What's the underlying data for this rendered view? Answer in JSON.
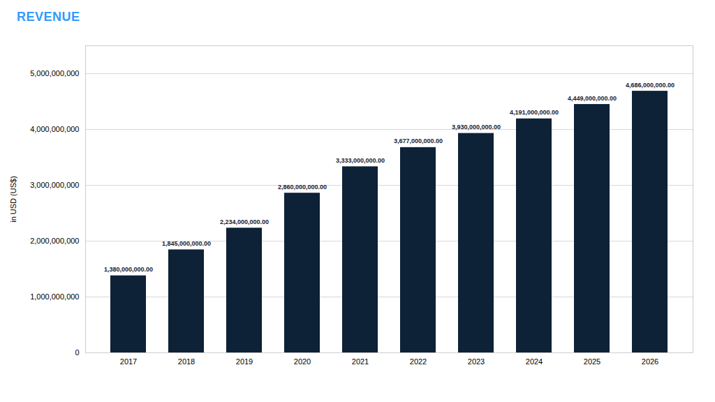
{
  "chart_data": {
    "type": "bar",
    "title": "REVENUE",
    "ylabel": "in USD (US$)",
    "categories": [
      "2017",
      "2018",
      "2019",
      "2020",
      "2021",
      "2022",
      "2023",
      "2024",
      "2025",
      "2026"
    ],
    "values": [
      1380000000,
      1845000000,
      2234000000,
      2860000000,
      3333000000,
      3677000000,
      3930000000,
      4191000000,
      4449000000,
      4686000000
    ],
    "value_labels": [
      "1,380,000,000.00",
      "1,845,000,000.00",
      "2,234,000,000.00",
      "2,860,000,000.00",
      "3,333,000,000.00",
      "3,677,000,000.00",
      "3,930,000,000.00",
      "4,191,000,000.00",
      "4,449,000,000.00",
      "4,686,000,000.00"
    ],
    "color": "#0d2137",
    "ylim": [
      0,
      5500000000
    ],
    "yticks": [
      0,
      {
        "value": 1000000000,
        "label": "1,000,000,000"
      },
      {
        "value": 2000000000,
        "label": "2,000,000,000"
      },
      {
        "value": 3000000000,
        "label": "3,000,000,000"
      },
      {
        "value": 4000000000,
        "label": "4,000,000,000"
      },
      {
        "value": 5000000000,
        "label": "5,000,000,000"
      }
    ],
    "grid": true,
    "data_labels": true
  }
}
